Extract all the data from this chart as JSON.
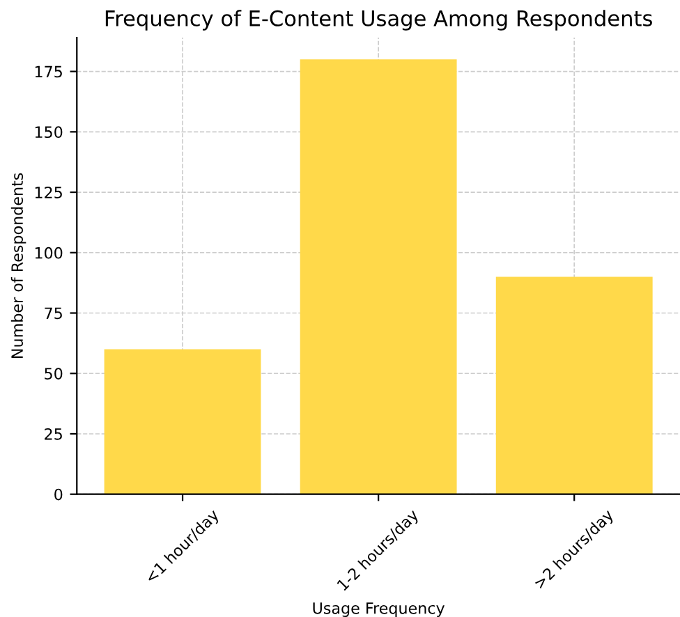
{
  "chart_data": {
    "type": "bar",
    "title": "Frequency of E-Content Usage Among Respondents",
    "xlabel": "Usage Frequency",
    "ylabel": "Number of Respondents",
    "categories": [
      "<1 hour/day",
      "1-2 hours/day",
      ">2 hours/day"
    ],
    "values": [
      60,
      180,
      90
    ],
    "color": "#ffd94a",
    "ylim": [
      0,
      189
    ],
    "yticks": [
      0,
      25,
      50,
      75,
      100,
      125,
      150,
      175
    ],
    "grid": true
  }
}
